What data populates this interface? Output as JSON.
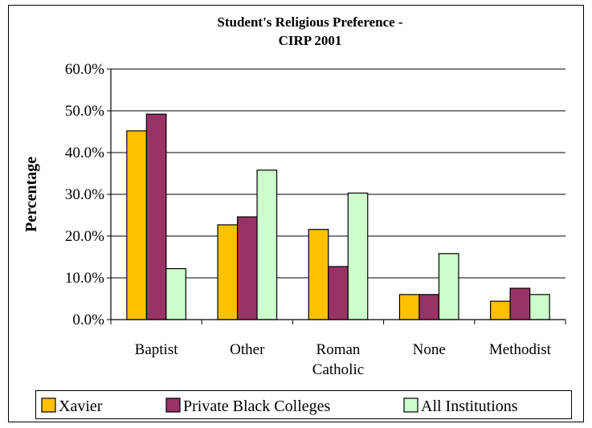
{
  "chart_data": {
    "type": "bar",
    "title_lines": [
      "Student's Religious Preference -",
      "CIRP 2001"
    ],
    "ylabel": "Percentage",
    "xlabel": "",
    "ylim": [
      0,
      60
    ],
    "yticks": [
      "0.0%",
      "10.0%",
      "20.0%",
      "30.0%",
      "40.0%",
      "50.0%",
      "60.0%"
    ],
    "ytick_values": [
      0,
      10,
      20,
      30,
      40,
      50,
      60
    ],
    "grid": true,
    "legend_position": "bottom",
    "categories": [
      [
        "Baptist"
      ],
      [
        "Other"
      ],
      [
        "Roman",
        "Catholic"
      ],
      [
        "None"
      ],
      [
        "Methodist"
      ]
    ],
    "series": [
      {
        "name": "Xavier",
        "color": "#FFC000",
        "values": [
          45.2,
          22.7,
          21.6,
          6.0,
          4.4
        ]
      },
      {
        "name": "Private Black Colleges",
        "color": "#993366",
        "values": [
          49.2,
          24.6,
          12.7,
          6.0,
          7.5
        ]
      },
      {
        "name": "All Institutions",
        "color": "#CCFFCC",
        "values": [
          12.2,
          35.8,
          30.3,
          15.8,
          6.0
        ]
      }
    ]
  }
}
